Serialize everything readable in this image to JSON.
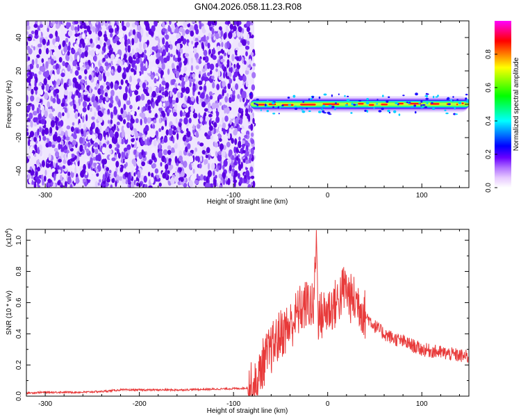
{
  "title": "GN04.2026.058.11.23.R08",
  "chart_data": [
    {
      "type": "heatmap",
      "xlabel": "Height of straight line (km)",
      "ylabel": "Frequency (Hz)",
      "xlim": [
        -320,
        150
      ],
      "ylim": [
        -50,
        50
      ],
      "xticks": [
        -300,
        -200,
        -100,
        0,
        100
      ],
      "yticks": [
        -40,
        -20,
        0,
        20,
        40
      ],
      "noise_region_x": [
        -320,
        -78
      ],
      "band_center_freq_hz": 0,
      "band_halfwidth_hz": 3,
      "band_x_start": -82,
      "colorbar": {
        "label": "Normalized spectral amplitude",
        "range": [
          0,
          1
        ],
        "ticks": [
          "0.0",
          "0.2",
          "0.4",
          "0.6",
          "0.8"
        ],
        "colormap": [
          "#ffffff",
          "#e6c8ff",
          "#b070ff",
          "#6a00ff",
          "#0000ff",
          "#00ffff",
          "#00ff00",
          "#ffff00",
          "#ff0000",
          "#ff00ff"
        ]
      },
      "grid": false
    },
    {
      "type": "line",
      "xlabel": "Height of straight line (km)",
      "ylabel": "SNR (10 * v/v)",
      "y_scale_note": "(x10",
      "y_scale_exponent": "4",
      "xlim": [
        -320,
        150
      ],
      "ylim": [
        0,
        1.07
      ],
      "xticks": [
        -300,
        -200,
        -100,
        0,
        100
      ],
      "yticks": [
        "0.0",
        "0.2",
        "0.4",
        "0.6",
        "0.8",
        "1.0"
      ],
      "series": [
        {
          "color": "#e83a3a",
          "x": [
            -320,
            -300,
            -260,
            -240,
            -220,
            -200,
            -160,
            -120,
            -90,
            -75,
            -70,
            -60,
            -50,
            -40,
            -30,
            -20,
            -15,
            -12,
            -10,
            0,
            10,
            18,
            25,
            33,
            40,
            50,
            60,
            70,
            80,
            100,
            120,
            150
          ],
          "y": [
            0.02,
            0.025,
            0.025,
            0.03,
            0.04,
            0.04,
            0.04,
            0.045,
            0.05,
            0.06,
            0.2,
            0.3,
            0.4,
            0.45,
            0.55,
            0.6,
            0.55,
            1.05,
            0.5,
            0.55,
            0.6,
            0.7,
            0.62,
            0.6,
            0.52,
            0.45,
            0.4,
            0.37,
            0.35,
            0.3,
            0.28,
            0.25
          ]
        }
      ],
      "grid": false
    }
  ]
}
